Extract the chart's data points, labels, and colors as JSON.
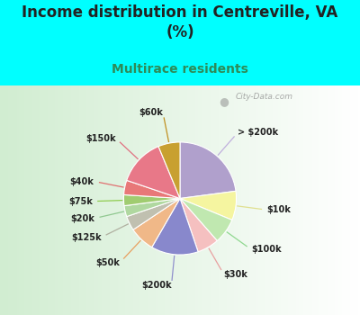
{
  "title": "Income distribution in Centreville, VA\n(%)",
  "subtitle": "Multirace residents",
  "title_color": "#222222",
  "subtitle_color": "#2e8b57",
  "background_outer": "#00FFFF",
  "watermark": "City-Data.com",
  "labels": [
    "> $200k",
    "$10k",
    "$100k",
    "$30k",
    "$200k",
    "$50k",
    "$125k",
    "$20k",
    "$75k",
    "$40k",
    "$150k",
    "$60k"
  ],
  "values": [
    22,
    8,
    7,
    6,
    13,
    7,
    4,
    3,
    3,
    4,
    13,
    6
  ],
  "colors": [
    "#b0a0cc",
    "#f5f5a0",
    "#c0e8b0",
    "#f5c0c0",
    "#8888cc",
    "#f0b888",
    "#c0c0b0",
    "#b0d8a0",
    "#a0cc70",
    "#e87878",
    "#e87888",
    "#c8a030"
  ],
  "line_colors": [
    "#c0b0dd",
    "#e0e090",
    "#90d890",
    "#e8a0a0",
    "#9090cc",
    "#e8a060",
    "#b0b0a0",
    "#90c890",
    "#90cc50",
    "#e07070",
    "#e07080",
    "#c09020"
  ],
  "label_fontsize": 7,
  "title_fontsize": 12,
  "subtitle_fontsize": 10
}
